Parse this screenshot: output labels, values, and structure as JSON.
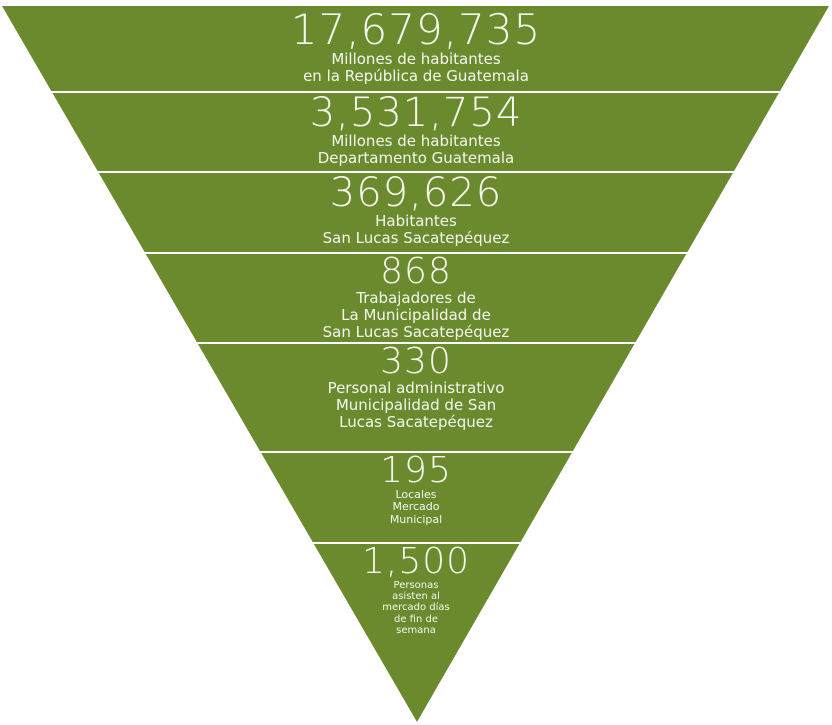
{
  "colors": {
    "fill": "#6b8a2e",
    "divider": "#ffffff",
    "text": "#f4f7ee"
  },
  "tiers": [
    {
      "value": "17,679,735",
      "lines": [
        "Millones de habitantes",
        "en la República de Guatemala"
      ]
    },
    {
      "value": "3,531,754",
      "lines": [
        "Millones de habitantes",
        "Departamento Guatemala"
      ]
    },
    {
      "value": "369,626",
      "lines": [
        "Habitantes",
        "San Lucas Sacatepéquez"
      ]
    },
    {
      "value": "868",
      "lines": [
        "Trabajadores de",
        "La Municipalidad de",
        "San Lucas  Sacatepéquez"
      ]
    },
    {
      "value": "330",
      "lines": [
        "Personal administrativo",
        "Municipalidad de San",
        "Lucas  Sacatepéquez"
      ]
    },
    {
      "value": "195",
      "lines": [
        "Locales",
        "Mercado",
        "Municipal"
      ]
    },
    {
      "value": "1,500",
      "lines": [
        "Personas",
        "asisten al",
        "mercado días",
        "de fin de",
        "semana"
      ]
    }
  ]
}
